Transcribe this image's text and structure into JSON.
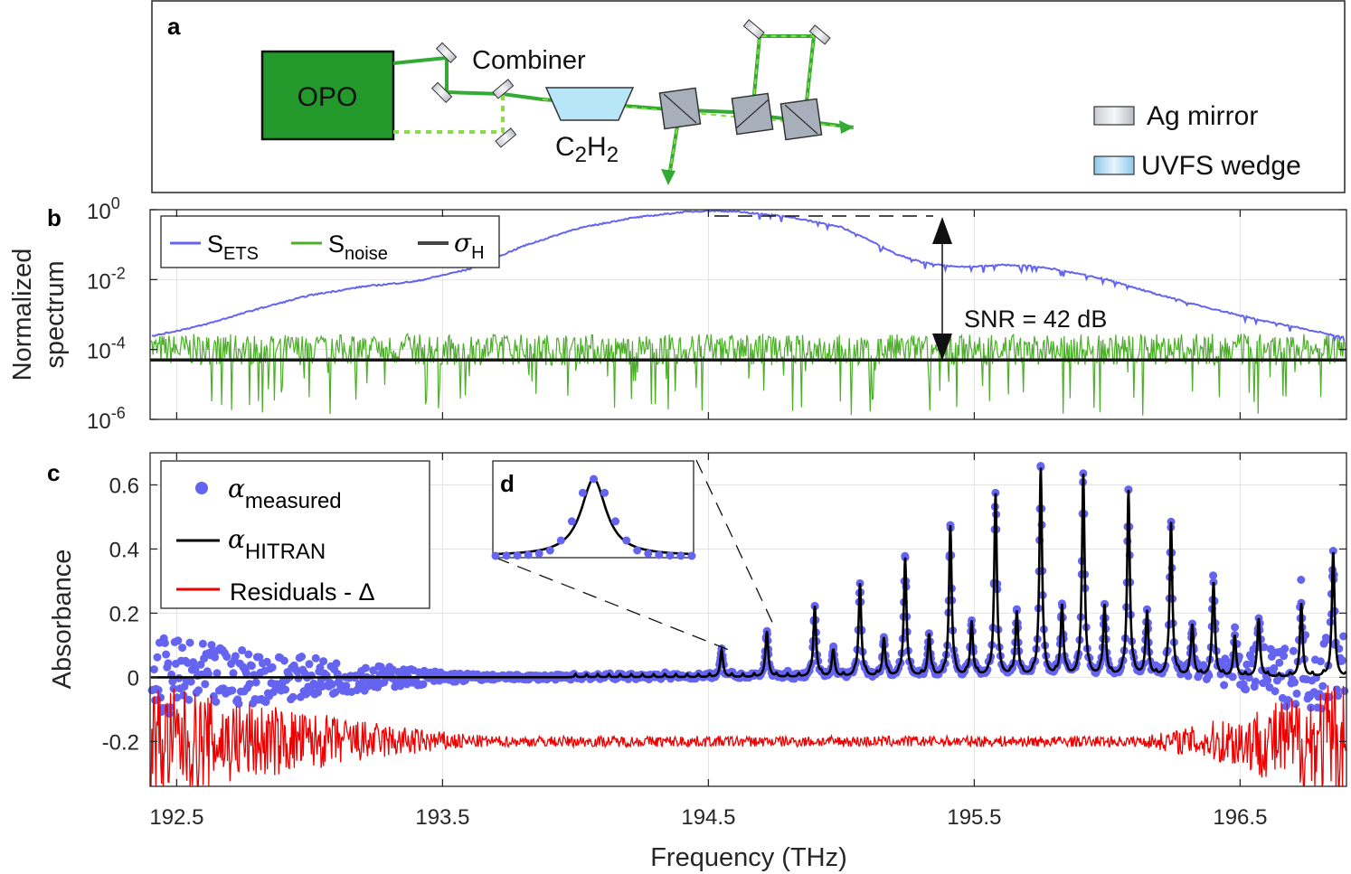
{
  "panel_a": {
    "label": "a",
    "opo": "OPO",
    "combiner": "Combiner",
    "gas_main": "C",
    "gas_sub1": "2",
    "gas_h": "H",
    "gas_sub2": "2",
    "legend_mirror": "Ag mirror",
    "legend_wedge": "UVFS wedge"
  },
  "colors": {
    "ets": "#6464f0",
    "noise": "#4caf28",
    "sigma": "#1a1a1a",
    "measured": "#6464f0",
    "hitran": "#000000",
    "residual": "#ee0000",
    "opo_fill": "#22992a",
    "beam": "#33aa33",
    "beam_dot": "#88dd44"
  },
  "chart_data": [
    {
      "type": "line",
      "panel": "b",
      "label": "b",
      "ylabel_1": "Normalized",
      "ylabel_2": "spectrum",
      "yscale": "log",
      "ylim": [
        1e-06,
        1
      ],
      "xlim": [
        192.4,
        196.9
      ],
      "yticks": [
        {
          "base": "10",
          "exp": "0"
        },
        {
          "base": "10",
          "exp": "-2"
        },
        {
          "base": "10",
          "exp": "-4"
        },
        {
          "base": "10",
          "exp": "-6"
        }
      ],
      "legend": [
        {
          "name": "S",
          "sub": "ETS"
        },
        {
          "name": "S",
          "sub": "noise"
        },
        {
          "name": "σ",
          "sub": "H"
        }
      ],
      "annotation": "SNR = 42 dB",
      "series": [
        {
          "name": "S_ETS",
          "x": [
            192.42,
            192.6,
            192.8,
            193.0,
            193.2,
            193.4,
            193.6,
            193.8,
            194.0,
            194.2,
            194.4,
            194.5,
            194.6,
            194.8,
            195.0,
            195.1,
            195.2,
            195.3,
            195.4,
            195.5,
            195.6,
            195.7,
            195.8,
            196.0,
            196.2,
            196.4,
            196.6,
            196.8,
            196.88
          ],
          "log10": [
            -3.6,
            -3.3,
            -2.85,
            -2.45,
            -2.2,
            -2.05,
            -1.7,
            -1.05,
            -0.55,
            -0.25,
            -0.07,
            -0.03,
            -0.05,
            -0.2,
            -0.5,
            -0.85,
            -1.25,
            -1.5,
            -1.62,
            -1.63,
            -1.58,
            -1.6,
            -1.7,
            -2.0,
            -2.45,
            -2.85,
            -3.2,
            -3.5,
            -3.65
          ]
        },
        {
          "name": "S_noise",
          "level_log10": -4.0,
          "spread": [
            -5.9,
            -3.6
          ]
        },
        {
          "name": "sigma_H",
          "value": 5e-05
        }
      ]
    },
    {
      "type": "scatter",
      "panel": "c",
      "label": "c",
      "ylabel": "Absorbance",
      "xlabel": "Frequency (THz)",
      "ylim": [
        -0.34,
        0.7
      ],
      "xlim": [
        192.4,
        196.9
      ],
      "yticks": [
        "0.6",
        "0.4",
        "0.2",
        "0",
        "-0.2"
      ],
      "xticks": [
        "192.5",
        "193.5",
        "194.5",
        "195.5",
        "196.5"
      ],
      "residual_offset": -0.2,
      "legend": [
        {
          "name": "α",
          "sub": "measured"
        },
        {
          "name": "α",
          "sub": "HITRAN"
        },
        {
          "name": "Residuals - Δ",
          "sub": ""
        }
      ],
      "peaks": {
        "x": [
          194.55,
          194.72,
          194.9,
          194.97,
          195.07,
          195.16,
          195.24,
          195.33,
          195.41,
          195.49,
          195.58,
          195.66,
          195.75,
          195.83,
          195.91,
          195.99,
          196.08,
          196.15,
          196.24,
          196.32,
          196.4,
          196.48,
          196.57,
          196.73,
          196.85
        ],
        "y": [
          0.08,
          0.14,
          0.22,
          0.08,
          0.29,
          0.12,
          0.37,
          0.13,
          0.47,
          0.17,
          0.57,
          0.2,
          0.65,
          0.22,
          0.63,
          0.22,
          0.58,
          0.2,
          0.48,
          0.16,
          0.29,
          0.12,
          0.18,
          0.22,
          0.39
        ]
      },
      "inset": {
        "label": "d",
        "center": 194.55,
        "samples": [
          0.0,
          0.002,
          0.005,
          0.012,
          0.03,
          0.07,
          0.2,
          0.45,
          0.82,
          1.0,
          0.82,
          0.45,
          0.2,
          0.07,
          0.03,
          0.012,
          0.005,
          0.002,
          0.0
        ]
      }
    }
  ]
}
